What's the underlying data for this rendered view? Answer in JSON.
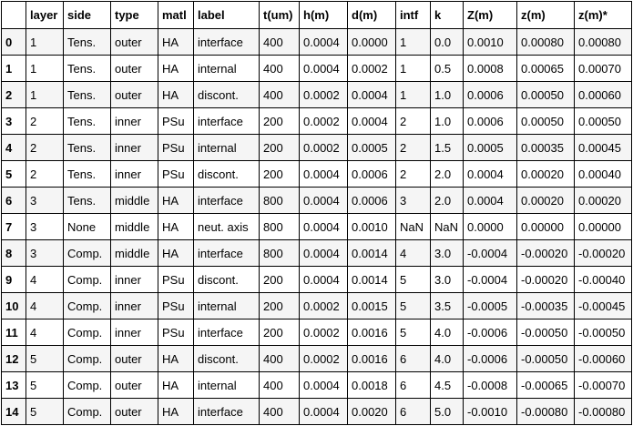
{
  "table": {
    "columns": [
      "",
      "layer",
      "side",
      "type",
      "matl",
      "label",
      "t(um)",
      "h(m)",
      "d(m)",
      "intf",
      "k",
      "Z(m)",
      "z(m)",
      "z(m)*"
    ],
    "rows": [
      [
        "0",
        "1",
        "Tens.",
        "outer",
        "HA",
        "interface",
        "400",
        "0.0004",
        "0.0000",
        "1",
        "0.0",
        "0.0010",
        "0.00080",
        "0.00080"
      ],
      [
        "1",
        "1",
        "Tens.",
        "outer",
        "HA",
        "internal",
        "400",
        "0.0004",
        "0.0002",
        "1",
        "0.5",
        "0.0008",
        "0.00065",
        "0.00070"
      ],
      [
        "2",
        "1",
        "Tens.",
        "outer",
        "HA",
        "discont.",
        "400",
        "0.0002",
        "0.0004",
        "1",
        "1.0",
        "0.0006",
        "0.00050",
        "0.00060"
      ],
      [
        "3",
        "2",
        "Tens.",
        "inner",
        "PSu",
        "interface",
        "200",
        "0.0002",
        "0.0004",
        "2",
        "1.0",
        "0.0006",
        "0.00050",
        "0.00050"
      ],
      [
        "4",
        "2",
        "Tens.",
        "inner",
        "PSu",
        "internal",
        "200",
        "0.0002",
        "0.0005",
        "2",
        "1.5",
        "0.0005",
        "0.00035",
        "0.00045"
      ],
      [
        "5",
        "2",
        "Tens.",
        "inner",
        "PSu",
        "discont.",
        "200",
        "0.0004",
        "0.0006",
        "2",
        "2.0",
        "0.0004",
        "0.00020",
        "0.00040"
      ],
      [
        "6",
        "3",
        "Tens.",
        "middle",
        "HA",
        "interface",
        "800",
        "0.0004",
        "0.0006",
        "3",
        "2.0",
        "0.0004",
        "0.00020",
        "0.00020"
      ],
      [
        "7",
        "3",
        "None",
        "middle",
        "HA",
        "neut. axis",
        "800",
        "0.0004",
        "0.0010",
        "NaN",
        "NaN",
        "0.0000",
        "0.00000",
        "0.00000"
      ],
      [
        "8",
        "3",
        "Comp.",
        "middle",
        "HA",
        "interface",
        "800",
        "0.0004",
        "0.0014",
        "4",
        "3.0",
        "-0.0004",
        "-0.00020",
        "-0.00020"
      ],
      [
        "9",
        "4",
        "Comp.",
        "inner",
        "PSu",
        "discont.",
        "200",
        "0.0004",
        "0.0014",
        "5",
        "3.0",
        "-0.0004",
        "-0.00020",
        "-0.00040"
      ],
      [
        "10",
        "4",
        "Comp.",
        "inner",
        "PSu",
        "internal",
        "200",
        "0.0002",
        "0.0015",
        "5",
        "3.5",
        "-0.0005",
        "-0.00035",
        "-0.00045"
      ],
      [
        "11",
        "4",
        "Comp.",
        "inner",
        "PSu",
        "interface",
        "200",
        "0.0002",
        "0.0016",
        "5",
        "4.0",
        "-0.0006",
        "-0.00050",
        "-0.00050"
      ],
      [
        "12",
        "5",
        "Comp.",
        "outer",
        "HA",
        "discont.",
        "400",
        "0.0002",
        "0.0016",
        "6",
        "4.0",
        "-0.0006",
        "-0.00050",
        "-0.00060"
      ],
      [
        "13",
        "5",
        "Comp.",
        "outer",
        "HA",
        "internal",
        "400",
        "0.0004",
        "0.0018",
        "6",
        "4.5",
        "-0.0008",
        "-0.00065",
        "-0.00070"
      ],
      [
        "14",
        "5",
        "Comp.",
        "outer",
        "HA",
        "interface",
        "400",
        "0.0004",
        "0.0020",
        "6",
        "5.0",
        "-0.0010",
        "-0.00080",
        "-0.00080"
      ]
    ]
  }
}
